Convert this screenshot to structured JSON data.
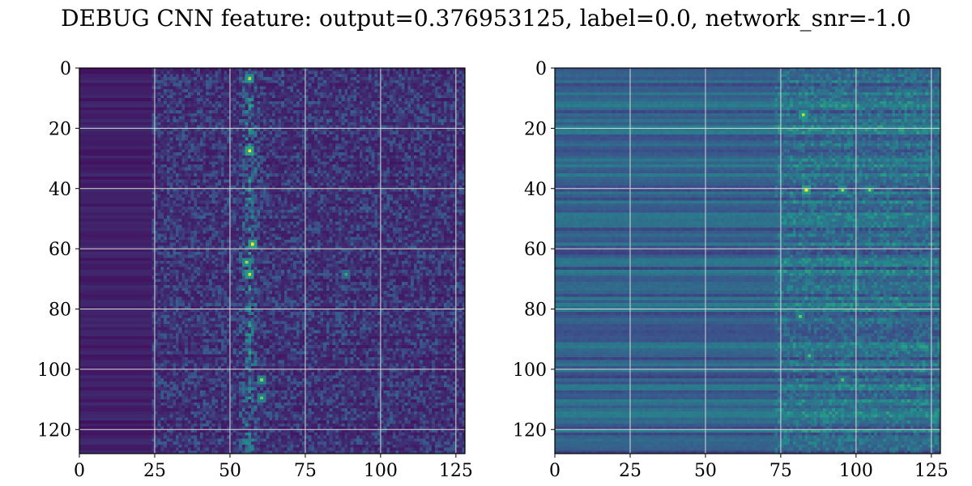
{
  "chart_data": {
    "type": "heatmap",
    "title": "DEBUG CNN feature: output=0.376953125, label=0.0, network_snr=-1.0",
    "colormap": "viridis",
    "colors": [
      "#440154",
      "#3b528b",
      "#21918c",
      "#5ec962",
      "#fde725"
    ],
    "grid_color": "#d9d9d9",
    "panels": [
      {
        "name": "",
        "xlabel": "",
        "ylabel": "",
        "xlim": [
          0,
          128
        ],
        "ylim": [
          128,
          0
        ],
        "x_ticks": [
          0,
          25,
          50,
          75,
          100,
          125
        ],
        "y_ticks": [
          0,
          20,
          40,
          60,
          80,
          100,
          120
        ],
        "grid": true,
        "hot_spots": [
          {
            "x": 56,
            "y": 27,
            "value": 1.0
          },
          {
            "x": 57,
            "y": 58,
            "value": 1.0
          },
          {
            "x": 56,
            "y": 68,
            "value": 0.95
          },
          {
            "x": 55,
            "y": 64,
            "value": 0.85
          },
          {
            "x": 56,
            "y": 3,
            "value": 0.9
          },
          {
            "x": 60,
            "y": 103,
            "value": 0.8
          },
          {
            "x": 60,
            "y": 109,
            "value": 0.75
          },
          {
            "x": 88,
            "y": 68,
            "value": 0.6
          }
        ]
      },
      {
        "name": "",
        "xlabel": "",
        "ylabel": "",
        "xlim": [
          0,
          128
        ],
        "ylim": [
          128,
          0
        ],
        "x_ticks": [
          0,
          25,
          50,
          75,
          100,
          125
        ],
        "y_ticks": [
          0,
          20,
          40,
          60,
          80,
          100,
          120
        ],
        "grid": true,
        "hot_spots": [
          {
            "x": 83,
            "y": 40,
            "value": 1.0
          },
          {
            "x": 82,
            "y": 15,
            "value": 0.9
          },
          {
            "x": 95,
            "y": 40,
            "value": 0.85
          },
          {
            "x": 104,
            "y": 40,
            "value": 0.8
          },
          {
            "x": 81,
            "y": 82,
            "value": 0.75
          },
          {
            "x": 84,
            "y": 95,
            "value": 0.7
          },
          {
            "x": 95,
            "y": 103,
            "value": 0.7
          }
        ]
      }
    ]
  }
}
